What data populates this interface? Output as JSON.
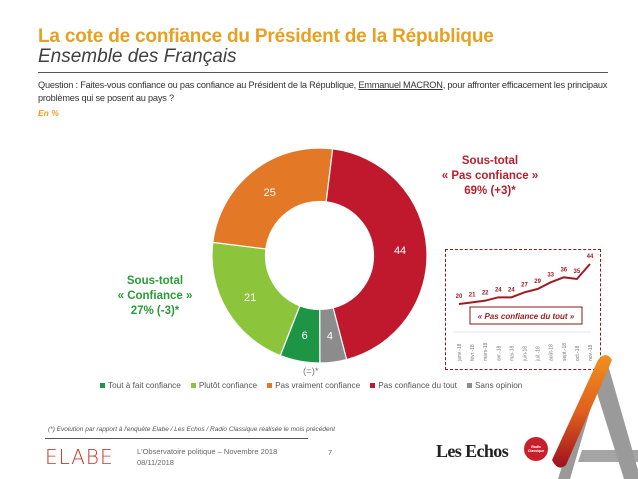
{
  "header": {
    "title": "La cote de confiance du Président de la République",
    "subtitle": "Ensemble des Français",
    "question_prefix": "Question : Faites-vous confiance ou pas confiance au Président de la République, ",
    "question_name": "Emmanuel MACRON",
    "question_suffix": ", pour affronter efficacement les principaux problèmes qui se posent au pays ?",
    "unit": "En %"
  },
  "annotations": {
    "subtotal_pas_confiance": [
      "Sous-total",
      "« Pas confiance »",
      "69% (+3)*"
    ],
    "subtotal_confiance": [
      "Sous-total",
      "« Confiance »",
      "27% (-3)*"
    ],
    "sans_opinion_evolution": "(=)*"
  },
  "footer": {
    "footnote": "(*) Evolution par rapport à l'enquête Elabe / Les Echos / Radio Classique réalisée le mois précédent",
    "brand": "ELABE",
    "observatoire": "L'Observatoire politique  – Novembre 2018",
    "date": "08/11/2018",
    "page_number": "7",
    "partner_1": "Les Echos",
    "partner_2": "Radio Classique"
  },
  "colors": {
    "title": "#e8a020",
    "pas_confiance": "#b8202e",
    "confiance": "#2a9a3a"
  },
  "chart_data": [
    {
      "type": "pie",
      "variant": "donut",
      "categories": [
        "Pas confiance du tout",
        "Sans opinion",
        "Tout à fait confiance",
        "Plutôt confiance",
        "Pas vraiment confiance"
      ],
      "values": [
        44,
        4,
        6,
        21,
        25
      ],
      "colors": [
        "#c0192e",
        "#8c8c8c",
        "#1e9445",
        "#8cc43c",
        "#e37826"
      ],
      "legend": {
        "placement": "bottom",
        "entries": [
          {
            "label": "Tout à fait confiance",
            "color": "#1e9445"
          },
          {
            "label": "Plutôt confiance",
            "color": "#8cc43c"
          },
          {
            "label": "Pas vraiment confiance",
            "color": "#e37826"
          },
          {
            "label": "Pas confiance du tout",
            "color": "#c0192e"
          },
          {
            "label": "Sans opinion",
            "color": "#8c8c8c"
          }
        ]
      },
      "unit": "%"
    },
    {
      "type": "line",
      "title": "« Pas confiance du tout »",
      "x": [
        "janv.-18",
        "févr.-18",
        "mars-18",
        "avr.-18",
        "mai-18",
        "juin-18",
        "juil.-18",
        "août-18",
        "sept.-18",
        "oct.-18",
        "nov.-18"
      ],
      "series": [
        {
          "name": "Pas confiance du tout",
          "values": [
            20,
            21,
            22,
            24,
            24,
            27,
            29,
            33,
            36,
            35,
            44
          ]
        }
      ],
      "color": "#a01c24",
      "grid": false
    }
  ]
}
